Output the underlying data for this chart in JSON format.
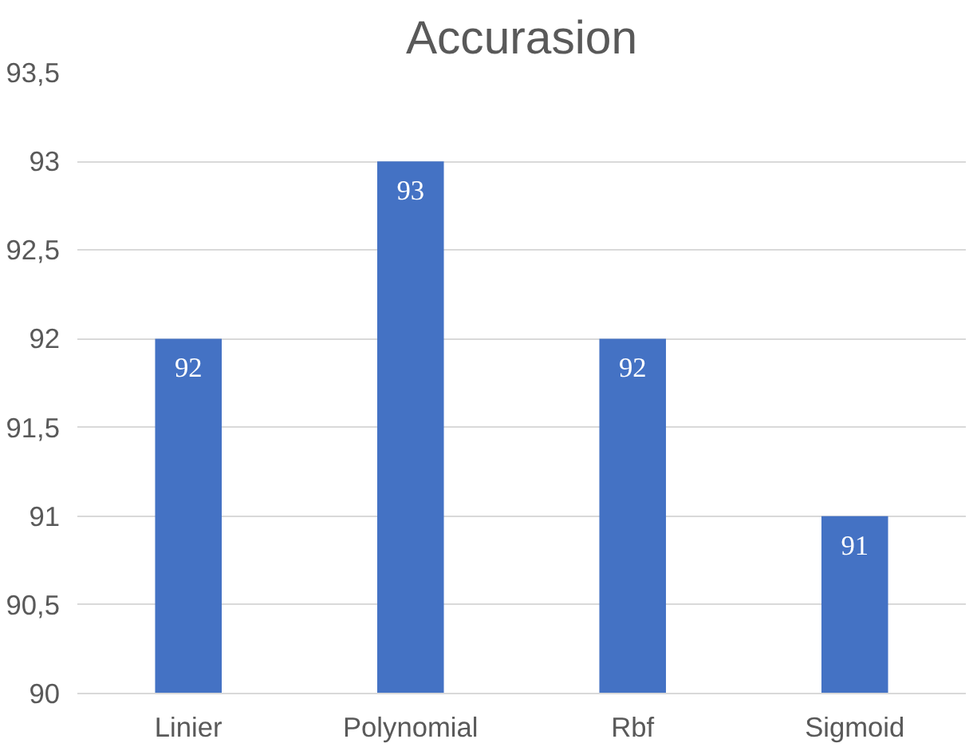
{
  "chart_data": {
    "type": "bar",
    "title": "Accurasion",
    "categories": [
      "Linier",
      "Polynomial",
      "Rbf",
      "Sigmoid"
    ],
    "values": [
      92,
      93,
      92,
      91
    ],
    "color": "#4472c4",
    "ylim": [
      90,
      93.5
    ],
    "yticks": [
      90,
      {
        "value": 90.5,
        "label": "90,5"
      },
      91,
      {
        "value": 91.5,
        "label": "91,5"
      },
      92,
      {
        "value": 92.5,
        "label": "92,5"
      },
      93,
      {
        "value": 93.5,
        "label": "93,5"
      }
    ],
    "grid": "y",
    "data_labels": true
  }
}
